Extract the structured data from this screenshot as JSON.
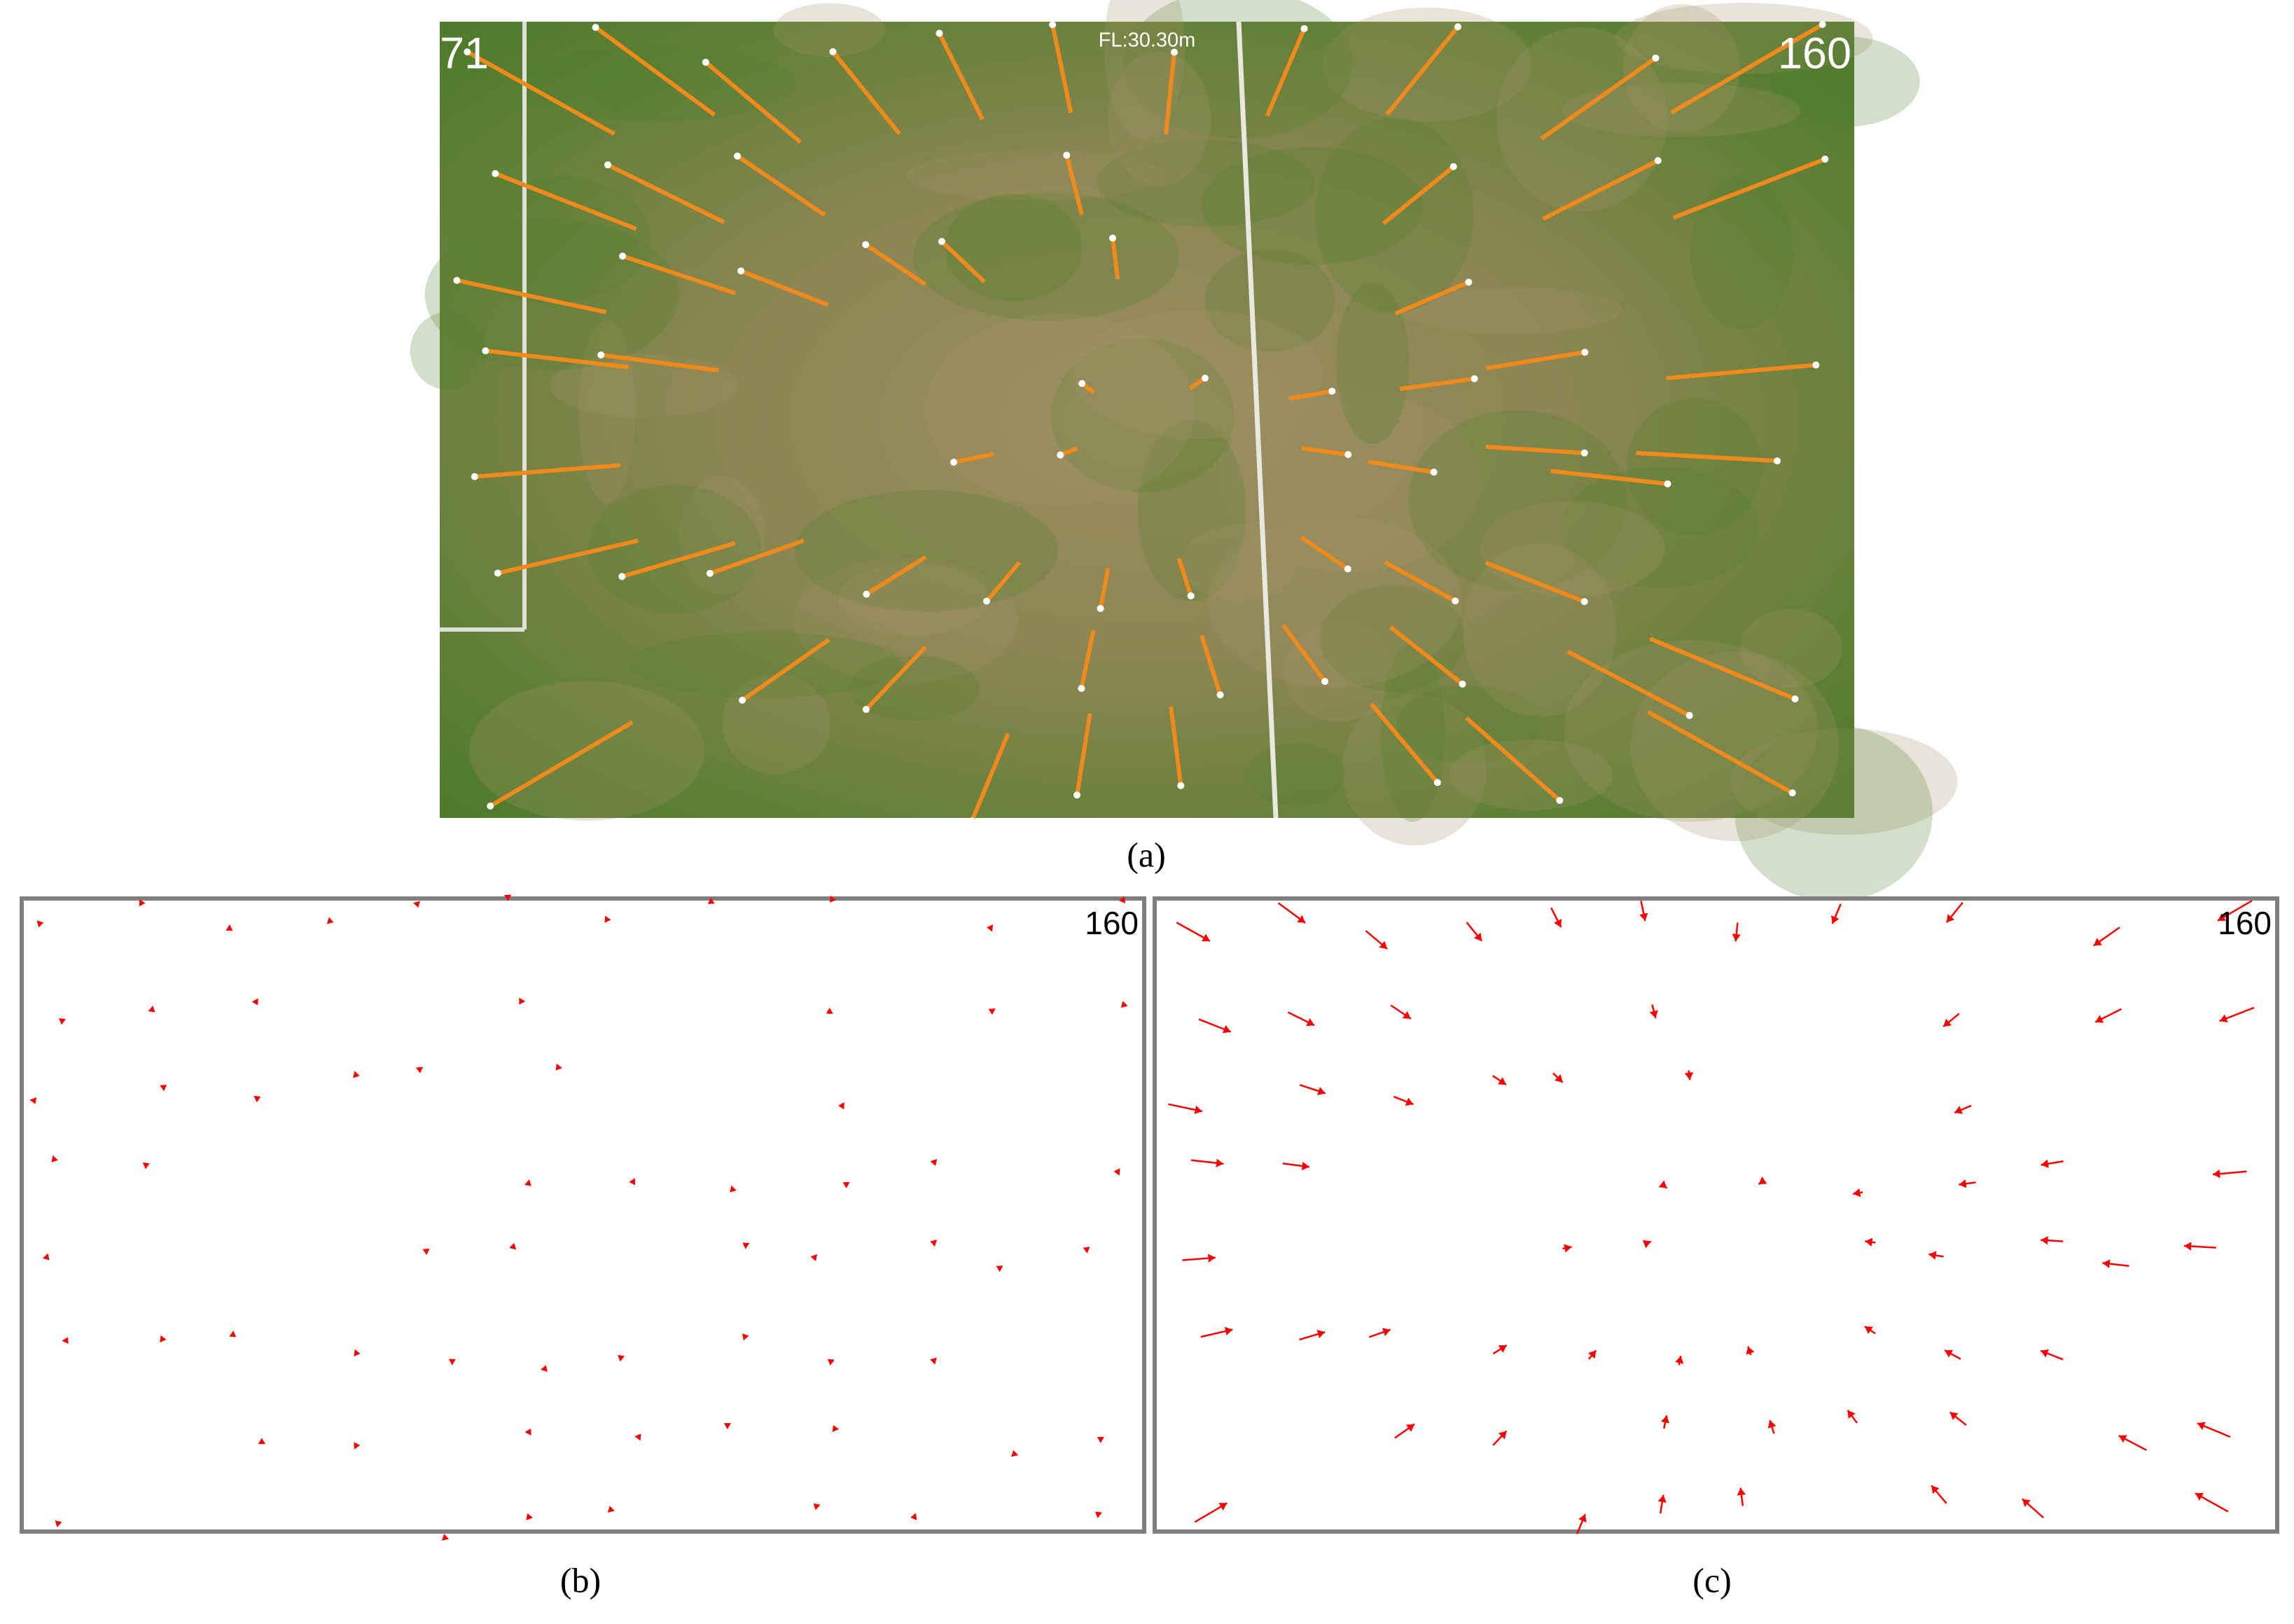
{
  "panel_a": {
    "frame_left": "71",
    "frame_right": "160",
    "flight_label": "FL:30.30m",
    "caption": "(a)"
  },
  "panel_b": {
    "frame": "160",
    "caption": "(b)"
  },
  "panel_c": {
    "frame": "160",
    "caption": "(c)"
  }
}
